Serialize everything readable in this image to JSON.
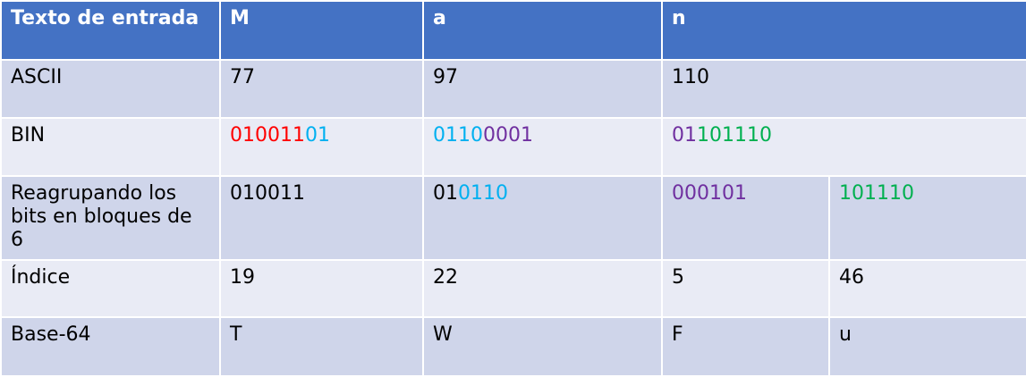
{
  "table": {
    "header": [
      "Texto de entrada",
      "M",
      "a",
      "n"
    ],
    "rows": [
      [
        "ASCII",
        "77",
        "97",
        "110"
      ],
      [
        "BIN",
        [
          {
            "text": "010011",
            "color": "#ff0000"
          },
          {
            "text": "01",
            "color": "#00b0f0"
          }
        ],
        [
          {
            "text": "0110",
            "color": "#00b0f0"
          },
          {
            "text": "0001",
            "color": "#7030a0"
          }
        ],
        [
          {
            "text": "01",
            "color": "#7030a0"
          },
          {
            "text": "101110",
            "color": "#00b050"
          }
        ]
      ],
      [
        "Reagrupando los bits en bloques de 6",
        [
          {
            "text": "010011",
            "color": "#000000"
          }
        ],
        [
          {
            "text": "01",
            "color": "#000000"
          },
          {
            "text": "0110",
            "color": "#00b0f0"
          }
        ],
        [
          {
            "text": "000101",
            "color": "#7030a0"
          }
        ],
        [
          {
            "text": "101110",
            "color": "#00b050"
          }
        ]
      ],
      [
        "Índice",
        "19",
        "22",
        "5",
        "46"
      ],
      [
        "Base-64",
        "T",
        "W",
        "F",
        "u"
      ]
    ]
  }
}
